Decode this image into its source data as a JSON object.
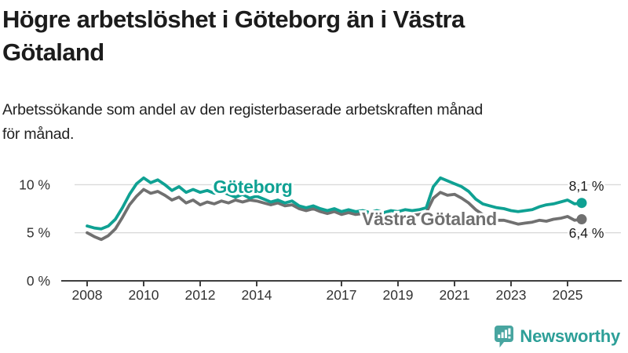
{
  "header": {
    "title_lines": [
      "Högre arbetslöshet i Göteborg än i Västra",
      "Götaland"
    ],
    "subtitle_lines": [
      "Arbetssökande som andel av den registerbaserade arbetskraften månad",
      "för månad."
    ]
  },
  "chart_data": {
    "type": "line",
    "title": "Högre arbetslöshet i Göteborg än i Västra Götaland",
    "subtitle": "Arbetssökande som andel av den registerbaserade arbetskraften månad för månad.",
    "xlabel": "",
    "ylabel": "",
    "grid": "horizontal",
    "legend_position": "inline-labels",
    "x_axis": {
      "start": 2008,
      "step": 0.25,
      "xlim": [
        2007.5,
        2026.2
      ],
      "ticks": [
        2008,
        2010,
        2012,
        2014,
        2017,
        2019,
        2021,
        2023,
        2025
      ],
      "tick_labels": [
        "2008",
        "2010",
        "2012",
        "2014",
        "2017",
        "2019",
        "2021",
        "2023",
        "2025"
      ]
    },
    "y_axis": {
      "ylim": [
        0,
        12.3
      ],
      "ticks": [
        0,
        5,
        10
      ],
      "tick_labels": [
        "0 %",
        "5 %",
        "10 %"
      ]
    },
    "series": [
      {
        "name": "Göteborg",
        "color": "#0fa193",
        "end_value": 8.1,
        "end_label": "8,1 %",
        "values": [
          5.7,
          5.5,
          5.4,
          5.7,
          6.4,
          7.6,
          9.0,
          10.1,
          10.7,
          10.2,
          10.5,
          10.0,
          9.4,
          9.8,
          9.2,
          9.5,
          9.2,
          9.4,
          9.1,
          9.3,
          9.0,
          8.7,
          9.0,
          8.6,
          8.8,
          8.5,
          8.2,
          8.4,
          8.1,
          8.3,
          7.8,
          7.6,
          7.8,
          7.5,
          7.3,
          7.5,
          7.2,
          7.4,
          7.2,
          7.3,
          7.1,
          7.3,
          7.1,
          7.3,
          7.2,
          7.4,
          7.3,
          7.4,
          7.6,
          9.8,
          10.7,
          10.4,
          10.1,
          9.8,
          9.3,
          8.5,
          8.0,
          7.8,
          7.6,
          7.5,
          7.3,
          7.2,
          7.3,
          7.4,
          7.7,
          7.9,
          8.0,
          8.2,
          8.4,
          8.0,
          8.1
        ]
      },
      {
        "name": "Västra Götaland",
        "color": "#707070",
        "end_value": 6.4,
        "end_label": "6,4 %",
        "values": [
          5.0,
          4.6,
          4.3,
          4.7,
          5.4,
          6.6,
          7.9,
          8.8,
          9.5,
          9.1,
          9.3,
          8.9,
          8.4,
          8.7,
          8.1,
          8.4,
          7.9,
          8.2,
          8.0,
          8.3,
          8.1,
          8.4,
          8.2,
          8.4,
          8.3,
          8.1,
          7.9,
          8.1,
          7.8,
          7.9,
          7.5,
          7.3,
          7.5,
          7.2,
          7.0,
          7.2,
          6.9,
          7.1,
          6.9,
          7.0,
          6.8,
          7.0,
          6.8,
          6.9,
          6.7,
          6.9,
          6.8,
          6.9,
          7.1,
          8.6,
          9.2,
          8.9,
          9.0,
          8.6,
          8.1,
          7.4,
          6.9,
          6.5,
          6.3,
          6.3,
          6.1,
          5.9,
          6.0,
          6.1,
          6.3,
          6.2,
          6.4,
          6.5,
          6.7,
          6.3,
          6.4
        ]
      }
    ]
  },
  "footer": {
    "brand": "Newsworthy"
  },
  "colors": {
    "accent_teal": "#0fa193",
    "series_gray": "#707070",
    "brand_teal": "#2d9f98",
    "grid": "#dadada",
    "axis": "#3f3f3f",
    "text": "#1c1c1c"
  }
}
